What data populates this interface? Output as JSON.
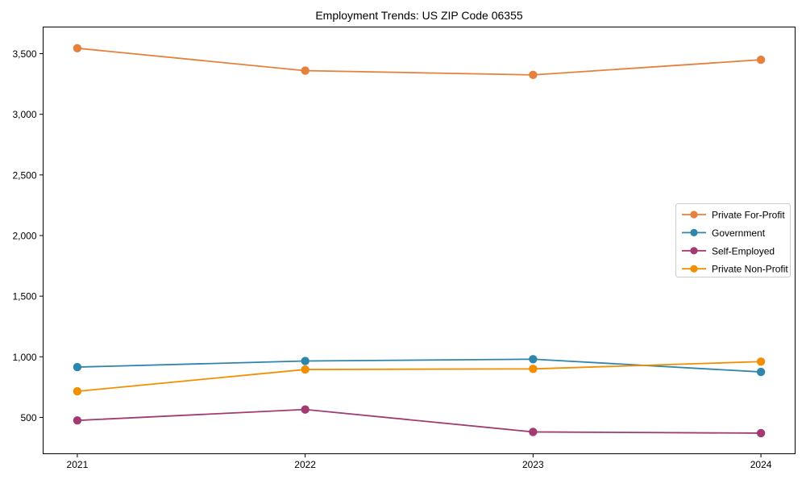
{
  "chart_data": {
    "type": "line",
    "title": "Employment Trends: US ZIP Code 06355",
    "x": [
      2021,
      2022,
      2023,
      2024
    ],
    "x_tick_labels": [
      "2021",
      "2022",
      "2023",
      "2024"
    ],
    "y_ticks": [
      {
        "value": 500,
        "label": "500"
      },
      {
        "value": 1000,
        "label": "1,000"
      },
      {
        "value": 1500,
        "label": "1,500"
      },
      {
        "value": 2000,
        "label": "2,000"
      },
      {
        "value": 2500,
        "label": "2,500"
      },
      {
        "value": 3000,
        "label": "3,000"
      },
      {
        "value": 3500,
        "label": "3,500"
      }
    ],
    "series": [
      {
        "name": "Private For-Profit",
        "color": "#e5813d",
        "values": [
          3545,
          3360,
          3325,
          3450
        ]
      },
      {
        "name": "Government",
        "color": "#2e86ab",
        "values": [
          915,
          965,
          980,
          875
        ]
      },
      {
        "name": "Self-Employed",
        "color": "#a23b72",
        "values": [
          475,
          565,
          380,
          370
        ]
      },
      {
        "name": "Private Non-Profit",
        "color": "#f18f01",
        "values": [
          715,
          895,
          900,
          960
        ]
      }
    ],
    "xlim": [
      2020.85,
      2024.15
    ],
    "ylim": [
      200,
      3720
    ],
    "grid": false,
    "legend_position": "center-right",
    "marker": "circle",
    "line_width": 1.8,
    "marker_radius": 5.2,
    "legend_marker_radius": 4.6,
    "axis_color": "#000000",
    "text_color": "#000000",
    "legend_border_color": "#cccccc",
    "background_color": "#ffffff"
  }
}
